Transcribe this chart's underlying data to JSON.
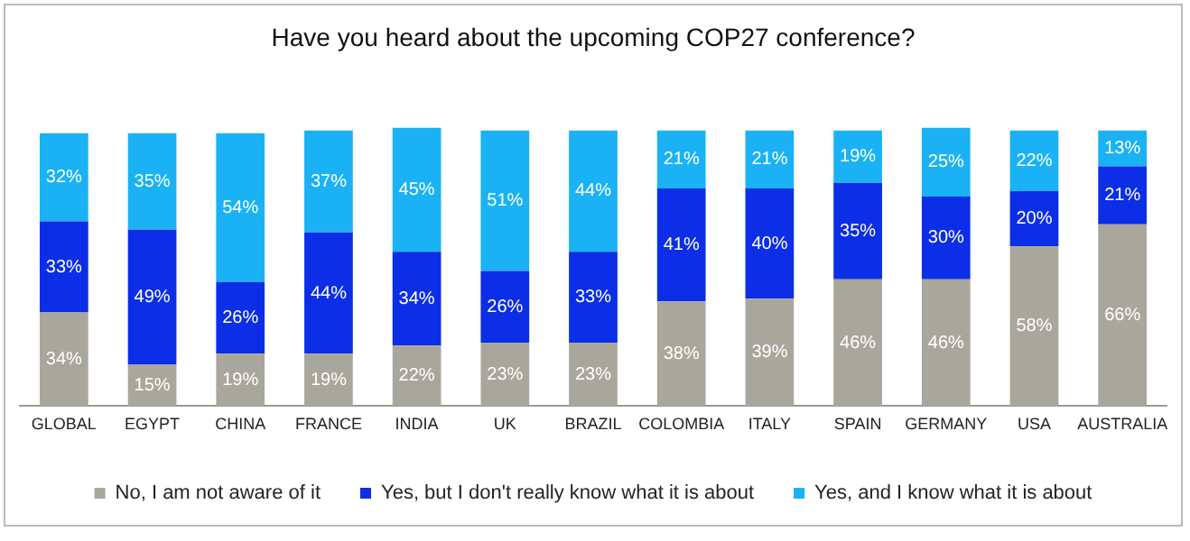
{
  "chart_data": {
    "type": "bar",
    "title": "Have you heard about the upcoming COP27 conference?",
    "stacked": true,
    "legend": "bottom",
    "grid": false,
    "categories": [
      "GLOBAL",
      "EGYPT",
      "CHINA",
      "FRANCE",
      "INDIA",
      "UK",
      "BRAZIL",
      "COLOMBIA",
      "ITALY",
      "SPAIN",
      "GERMANY",
      "USA",
      "AUSTRALIA"
    ],
    "series": [
      {
        "name": "No, I am not aware of it",
        "color": "#a9a79c",
        "values": [
          34,
          15,
          19,
          19,
          22,
          23,
          23,
          38,
          39,
          46,
          46,
          58,
          66
        ],
        "value_labels": [
          "34%",
          "15%",
          "19%",
          "19%",
          "22%",
          "23%",
          "23%",
          "38%",
          "39%",
          "46%",
          "46%",
          "58%",
          "66%"
        ]
      },
      {
        "name": "Yes, but I don't really know what it is about",
        "color": "#0b2ee6",
        "values": [
          33,
          49,
          26,
          44,
          34,
          26,
          33,
          41,
          40,
          35,
          30,
          20,
          21
        ],
        "value_labels": [
          "33%",
          "49%",
          "26%",
          "44%",
          "34%",
          "26%",
          "33%",
          "41%",
          "40%",
          "35%",
          "30%",
          "20%",
          "21%"
        ]
      },
      {
        "name": "Yes, and I know what it is about",
        "color": "#1ab2f4",
        "values": [
          32,
          35,
          54,
          37,
          45,
          51,
          44,
          21,
          21,
          19,
          25,
          22,
          13
        ],
        "value_labels": [
          "32%",
          "35%",
          "54%",
          "37%",
          "45%",
          "51%",
          "44%",
          "21%",
          "21%",
          "19%",
          "25%",
          "22%",
          "13%"
        ]
      }
    ]
  }
}
